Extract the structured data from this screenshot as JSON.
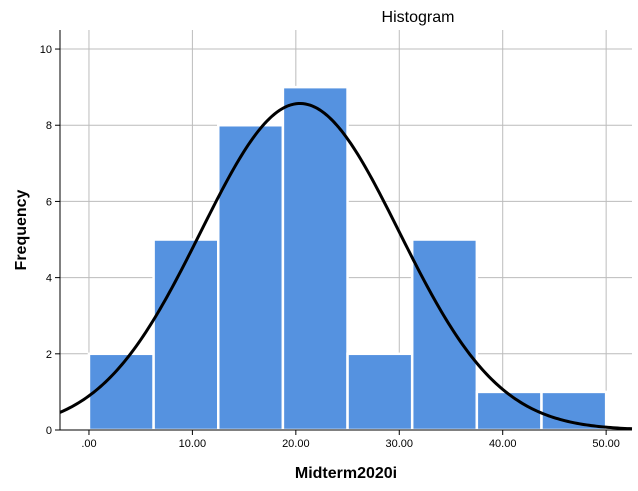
{
  "chart_data": {
    "type": "bar",
    "title": "Histogram",
    "xlabel": "Midterm2020i",
    "ylabel": "Frequency",
    "bins": [
      {
        "start": 0.0,
        "end": 6.25,
        "count": 2
      },
      {
        "start": 6.25,
        "end": 12.5,
        "count": 5
      },
      {
        "start": 12.5,
        "end": 18.75,
        "count": 8
      },
      {
        "start": 18.75,
        "end": 25.0,
        "count": 9
      },
      {
        "start": 25.0,
        "end": 31.25,
        "count": 2
      },
      {
        "start": 31.25,
        "end": 37.5,
        "count": 5
      },
      {
        "start": 37.5,
        "end": 43.75,
        "count": 1
      },
      {
        "start": 43.75,
        "end": 50.0,
        "count": 1
      }
    ],
    "xticks": [
      0,
      10,
      20,
      30,
      40,
      50
    ],
    "xtick_labels": [
      ".00",
      "10.00",
      "20.00",
      "30.00",
      "40.00",
      "50.00"
    ],
    "yticks": [
      0,
      2,
      4,
      6,
      8,
      10
    ],
    "ytick_labels": [
      "0",
      "2",
      "4",
      "6",
      "8",
      "10"
    ],
    "xlim": [
      -2.8,
      52.5
    ],
    "ylim": [
      0,
      10.5
    ],
    "grid": true,
    "normal_curve": {
      "mean": 20.4,
      "sd": 9.6,
      "n": 33,
      "bin_width": 6.25
    },
    "colors": {
      "bar": "#5592e0",
      "bar_edge": "#ffffff",
      "curve": "#000000",
      "grid": "#bcbcbc"
    }
  }
}
